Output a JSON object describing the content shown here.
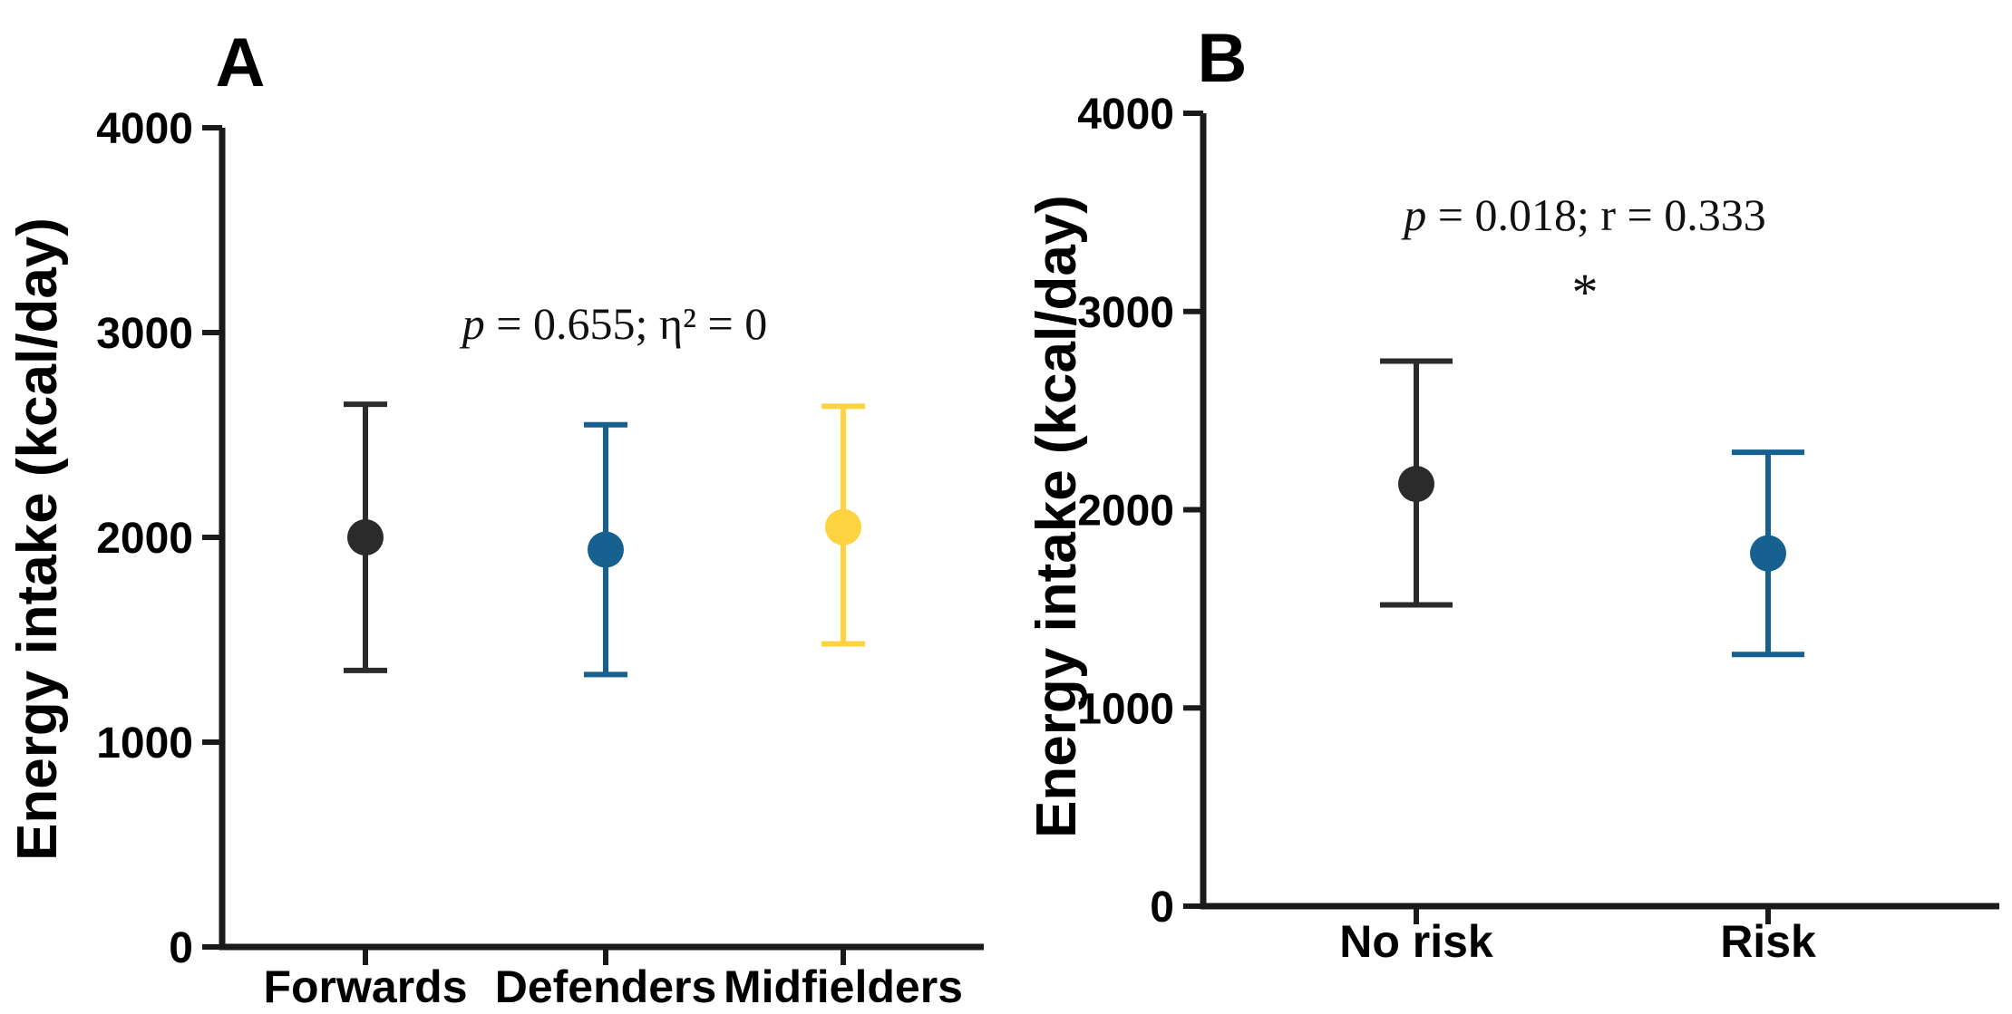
{
  "figure": {
    "background_color": "#ffffff",
    "axis_color": "#1a1a1a",
    "text_color": "#000000"
  },
  "chart_data": [
    {
      "type": "scatter",
      "panel_label": "A",
      "ylabel": "Energy intake (kcal/day)",
      "xlabel": "",
      "ylim": [
        0,
        4000
      ],
      "yticks": [
        0,
        1000,
        2000,
        3000,
        4000
      ],
      "ytick_labels": [
        "0",
        "1000",
        "2000",
        "3000",
        "4000"
      ],
      "grid": false,
      "legend_position": "none",
      "marker_style": "point-with-sd-error-bars",
      "categories": [
        "Forwards",
        "Defenders",
        "Midfielders"
      ],
      "series": [
        {
          "name": "Forwards",
          "mean": 2000,
          "err_low": 1350,
          "err_high": 2650,
          "color": "#2b2b2b"
        },
        {
          "name": "Defenders",
          "mean": 1940,
          "err_low": 1330,
          "err_high": 2550,
          "color": "#16618f"
        },
        {
          "name": "Midfielders",
          "mean": 2050,
          "err_low": 1480,
          "err_high": 2640,
          "color": "#ffd23f"
        }
      ],
      "annotation": {
        "italic_lead": "p",
        "text": " = 0.655; η² = 0"
      },
      "annotation_value_y": 3050,
      "sig_marker": ""
    },
    {
      "type": "scatter",
      "panel_label": "B",
      "ylabel": "Energy intake (kcal/day)",
      "xlabel": "",
      "ylim": [
        0,
        4000
      ],
      "yticks": [
        0,
        1000,
        2000,
        3000,
        4000
      ],
      "ytick_labels": [
        "0",
        "1000",
        "2000",
        "3000",
        "4000"
      ],
      "grid": false,
      "legend_position": "none",
      "marker_style": "point-with-sd-error-bars",
      "categories": [
        "No risk",
        "Risk"
      ],
      "series": [
        {
          "name": "No risk",
          "mean": 2130,
          "err_low": 1520,
          "err_high": 2750,
          "color": "#2b2b2b"
        },
        {
          "name": "Risk",
          "mean": 1780,
          "err_low": 1270,
          "err_high": 2290,
          "color": "#16618f"
        }
      ],
      "annotation": {
        "italic_lead": "p",
        "text": " = 0.018; r = 0.333"
      },
      "annotation_value_y": 3450,
      "sig_marker": "*"
    }
  ]
}
